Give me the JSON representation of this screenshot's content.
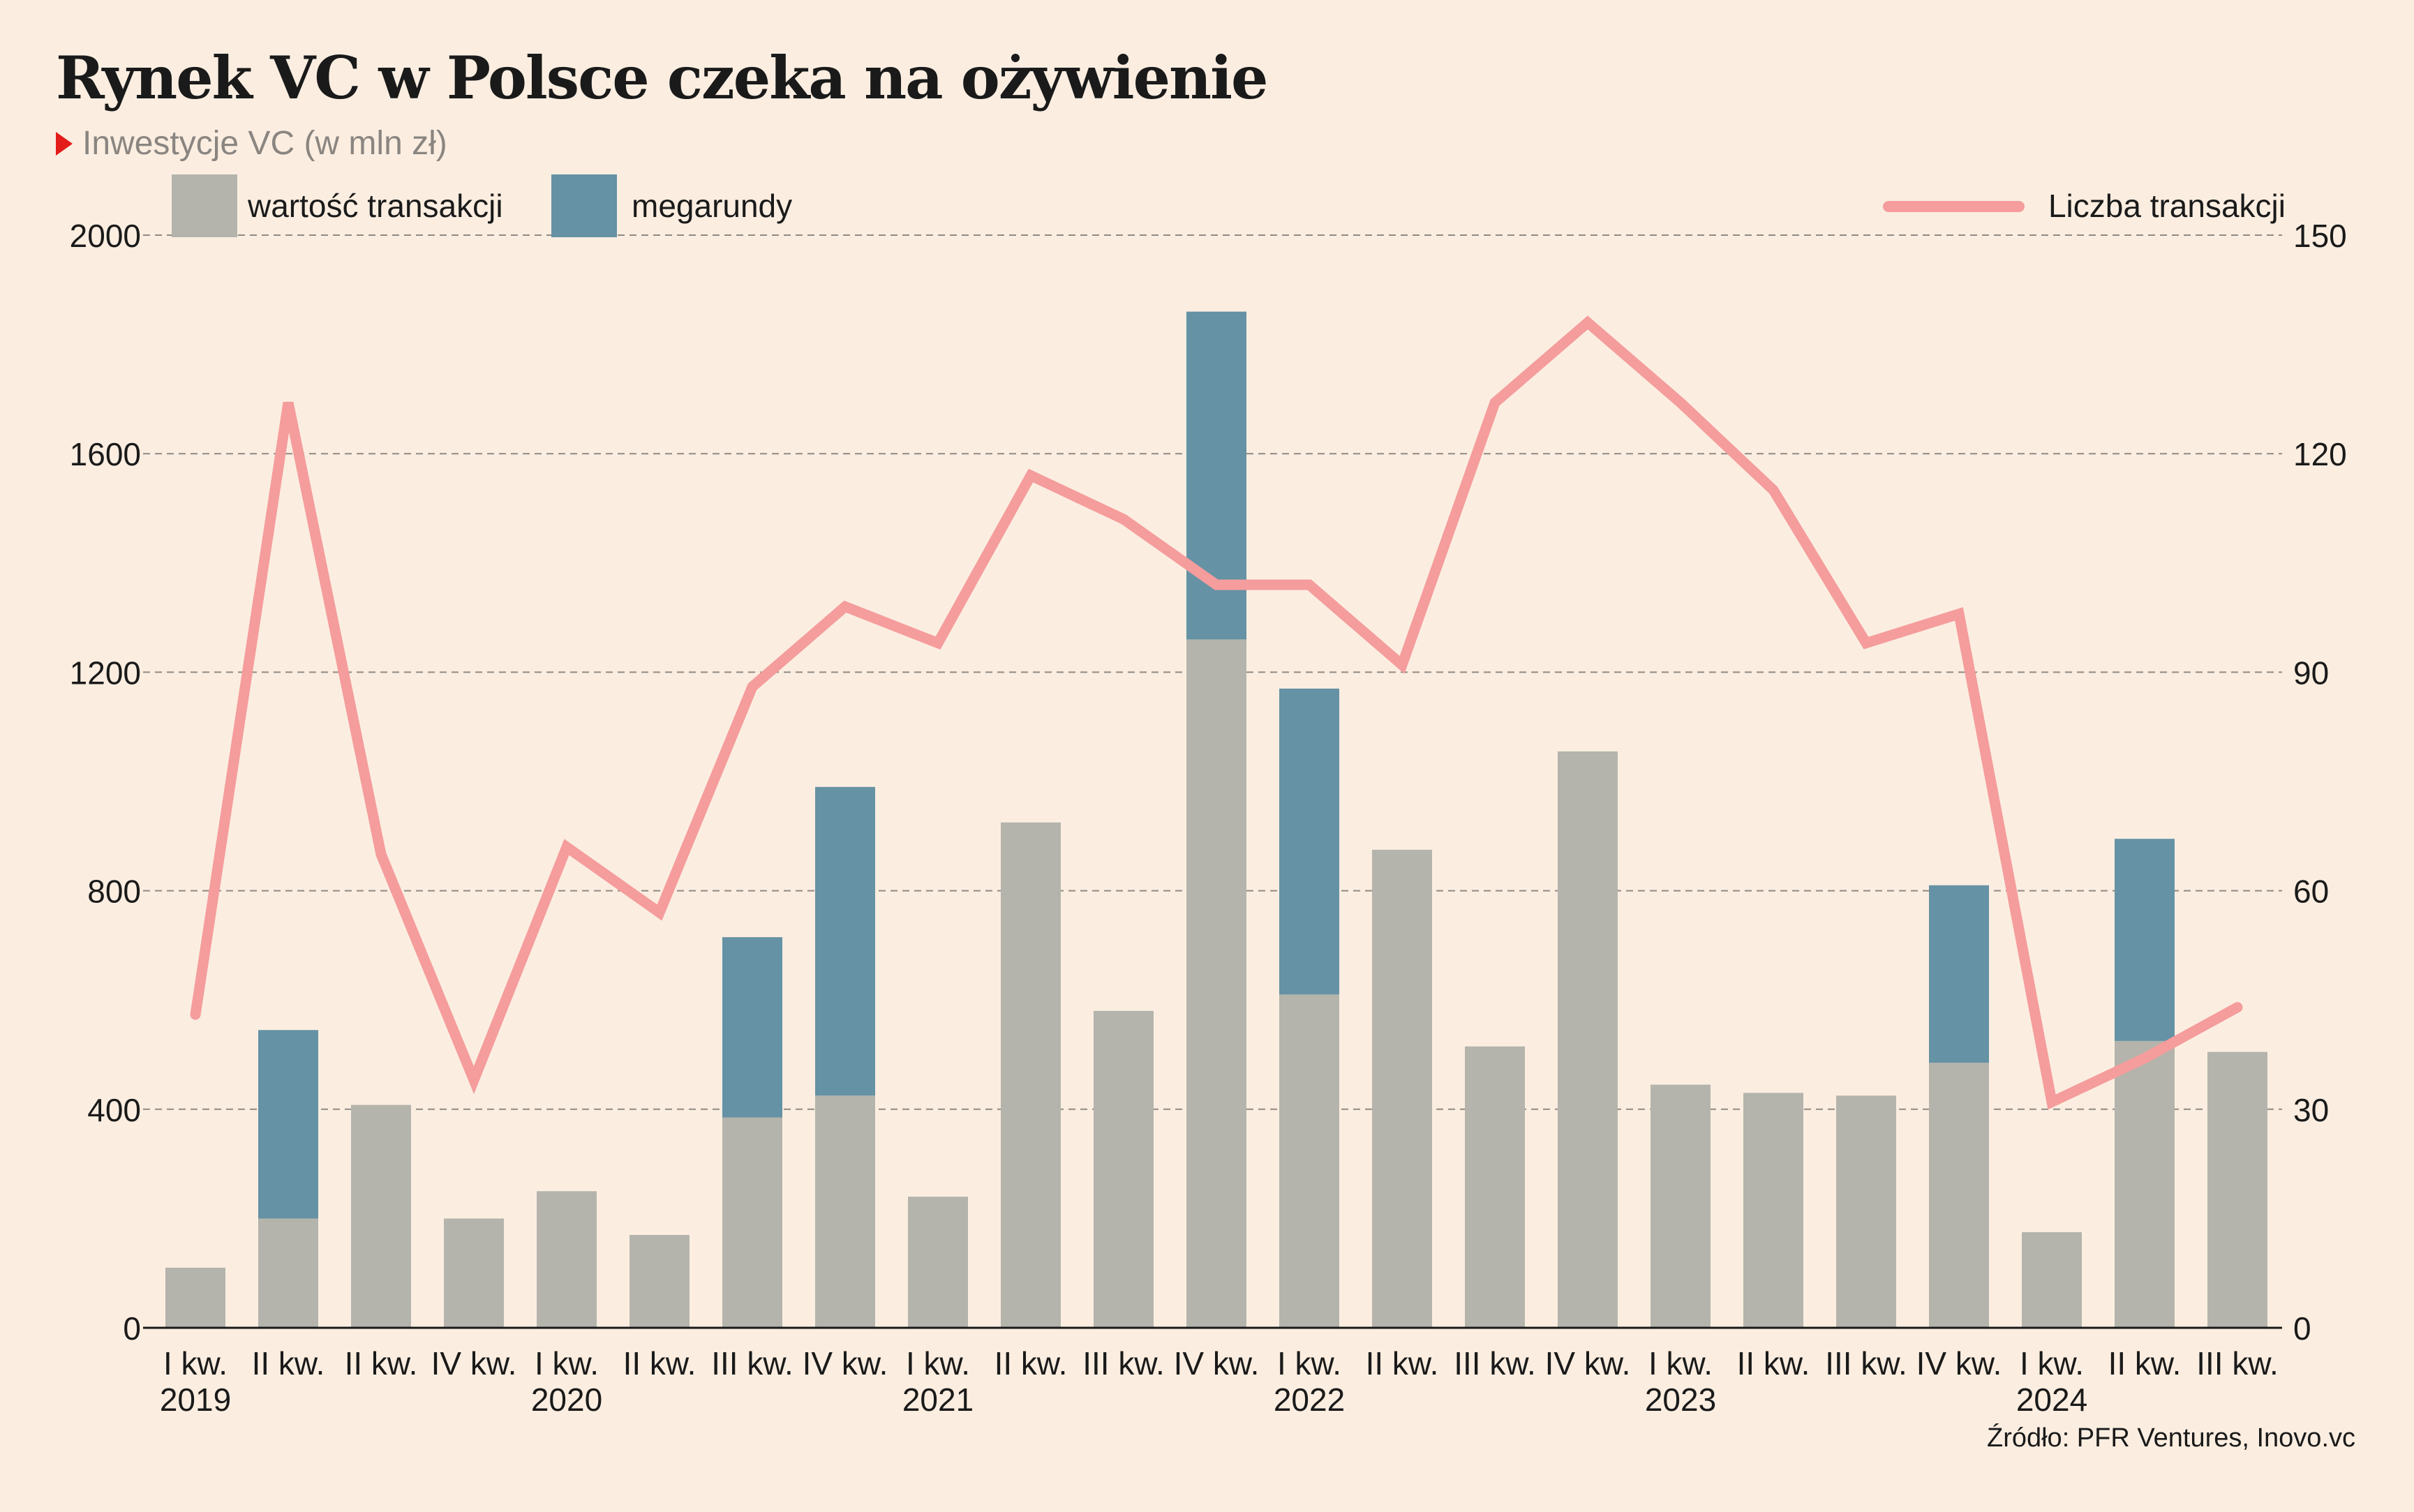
{
  "title": "Rynek VC w Polsce czeka na ożywienie",
  "subtitle": "Inwestycje VC (w mln zł)",
  "source": "Źródło: PFR Ventures, Inovo.vc",
  "colors": {
    "background": "#fbeee1",
    "value_bar": "#b4b4ac",
    "mega_bar": "#6592a4",
    "line": "#f59c9c",
    "subtitle_marker": "#e31d1a"
  },
  "chart_data": {
    "type": "bar",
    "legend": [
      {
        "label": "wartość transakcji",
        "color": "#b4b4ac",
        "kind": "box"
      },
      {
        "label": "megarundy",
        "color": "#6592a4",
        "kind": "box"
      },
      {
        "label": "Liczba transakcji",
        "color": "#f59c9c",
        "kind": "line"
      }
    ],
    "categories": [
      "I kw.",
      "II kw.",
      "II kw.",
      "IV kw.",
      "I kw.",
      "II kw.",
      "III kw.",
      "IV kw.",
      "I kw.",
      "II kw.",
      "III kw.",
      "IV kw.",
      "I kw.",
      "II kw.",
      "III kw.",
      "IV kw.",
      "I kw.",
      "II kw.",
      "III kw.",
      "IV kw.",
      "I kw.",
      "II kw.",
      "III kw."
    ],
    "years": [
      {
        "label": "2019",
        "index": 0
      },
      {
        "label": "2020",
        "index": 4
      },
      {
        "label": "2021",
        "index": 8
      },
      {
        "label": "2022",
        "index": 12
      },
      {
        "label": "2023",
        "index": 16
      },
      {
        "label": "2024",
        "index": 20
      }
    ],
    "series": [
      {
        "name": "wartość transakcji",
        "axis": "left",
        "values": [
          110,
          200,
          408,
          200,
          250,
          170,
          385,
          425,
          240,
          925,
          580,
          1260,
          610,
          875,
          515,
          1055,
          445,
          430,
          425,
          485,
          175,
          525,
          505
        ]
      },
      {
        "name": "megarundy",
        "axis": "left",
        "values": [
          0,
          345,
          0,
          0,
          0,
          0,
          330,
          565,
          0,
          0,
          0,
          600,
          560,
          0,
          0,
          0,
          0,
          0,
          0,
          325,
          0,
          370,
          0
        ]
      },
      {
        "name": "Liczba transakcji",
        "axis": "right",
        "type": "line",
        "values": [
          43,
          127,
          65,
          34,
          66,
          57,
          88,
          99,
          94,
          117,
          111,
          102,
          102,
          91,
          127,
          138,
          127,
          115,
          94,
          98,
          31,
          37,
          44
        ]
      }
    ],
    "ylim_left": [
      0,
      2000
    ],
    "yticks_left": [
      "0",
      "400",
      "800",
      "1200",
      "1600",
      "2000"
    ],
    "ylim_right": [
      0,
      150
    ],
    "yticks_right": [
      "0",
      "30",
      "60",
      "90",
      "120",
      "150"
    ],
    "grid": true
  }
}
